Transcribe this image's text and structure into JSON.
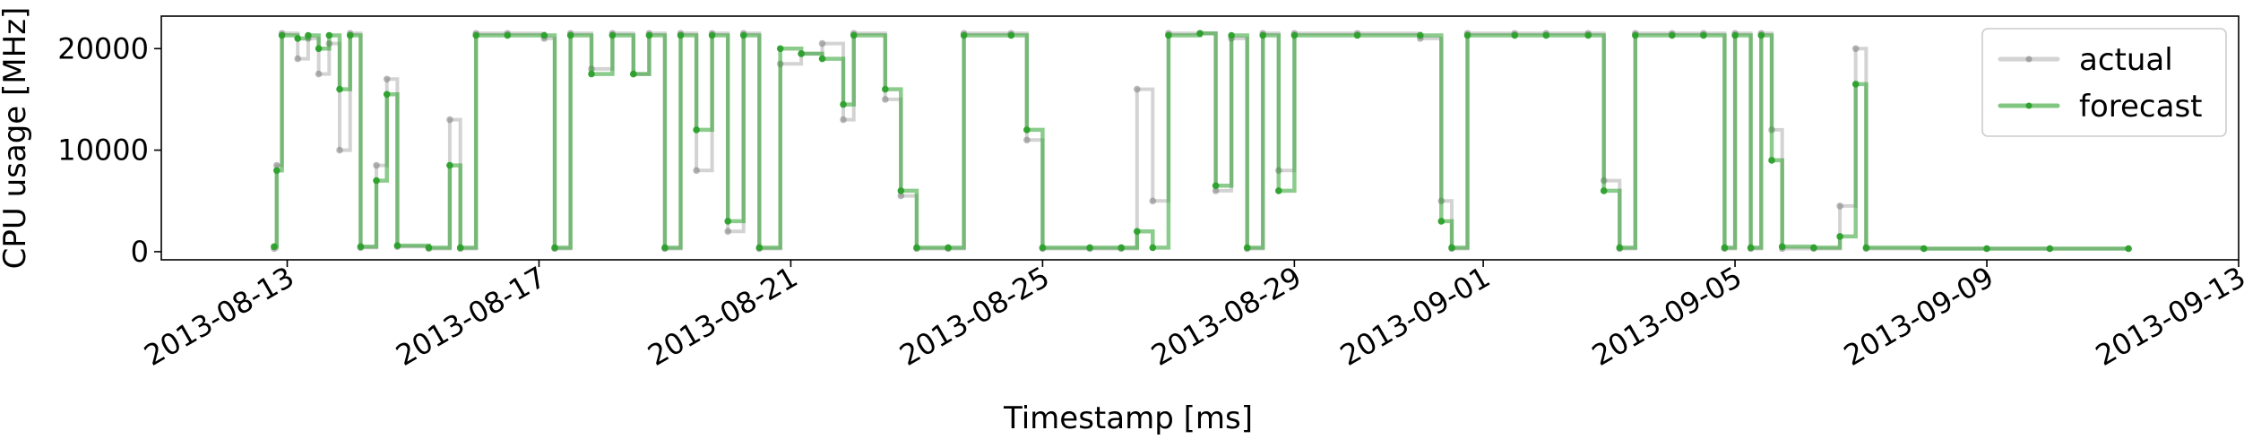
{
  "chart_data": {
    "type": "line",
    "xlabel": "Timestamp [ms]",
    "ylabel": "CPU usage [MHz]",
    "x_axis": {
      "type": "date",
      "range": [
        "2013-08-11",
        "2013-09-13"
      ]
    },
    "ylim": [
      -800,
      23200
    ],
    "y_ticks": [
      0,
      10000,
      20000
    ],
    "y_tick_labels": [
      "0",
      "10000",
      "20000"
    ],
    "x_ticks": [
      "2013-08-13",
      "2013-08-17",
      "2013-08-21",
      "2013-08-25",
      "2013-08-29",
      "2013-09-01",
      "2013-09-05",
      "2013-09-09",
      "2013-09-13"
    ],
    "x_tick_labels": [
      "2013-08-13",
      "2013-08-17",
      "2013-08-21",
      "2013-08-25",
      "2013-08-29",
      "2013-09-01",
      "2013-09-05",
      "2013-09-09",
      "2013-09-13"
    ],
    "grid": false,
    "legend": {
      "placement": "top-right"
    },
    "series": [
      {
        "name": "actual",
        "color": "#808080",
        "marker": "dot",
        "points": [
          [
            "2013-08-12 19:00",
            300
          ],
          [
            "2013-08-12 20:00",
            8500
          ],
          [
            "2013-08-12 22:00",
            21500
          ],
          [
            "2013-08-13 04:00",
            19000
          ],
          [
            "2013-08-13 08:00",
            21000
          ],
          [
            "2013-08-13 12:00",
            17500
          ],
          [
            "2013-08-13 16:00",
            20500
          ],
          [
            "2013-08-13 20:00",
            10000
          ],
          [
            "2013-08-14 00:00",
            21500
          ],
          [
            "2013-08-14 04:00",
            400
          ],
          [
            "2013-08-14 10:00",
            8500
          ],
          [
            "2013-08-14 14:00",
            17000
          ],
          [
            "2013-08-14 18:00",
            500
          ],
          [
            "2013-08-15 06:00",
            300
          ],
          [
            "2013-08-15 14:00",
            13000
          ],
          [
            "2013-08-15 18:00",
            300
          ],
          [
            "2013-08-16 00:00",
            21500
          ],
          [
            "2013-08-16 12:00",
            21500
          ],
          [
            "2013-08-17 02:00",
            21000
          ],
          [
            "2013-08-17 06:00",
            300
          ],
          [
            "2013-08-17 12:00",
            21500
          ],
          [
            "2013-08-17 20:00",
            18000
          ],
          [
            "2013-08-18 04:00",
            21500
          ],
          [
            "2013-08-18 12:00",
            17500
          ],
          [
            "2013-08-18 18:00",
            21500
          ],
          [
            "2013-08-19 00:00",
            300
          ],
          [
            "2013-08-19 06:00",
            21500
          ],
          [
            "2013-08-19 12:00",
            8000
          ],
          [
            "2013-08-19 18:00",
            21500
          ],
          [
            "2013-08-20 00:00",
            2000
          ],
          [
            "2013-08-20 06:00",
            21500
          ],
          [
            "2013-08-20 12:00",
            300
          ],
          [
            "2013-08-20 20:00",
            18500
          ],
          [
            "2013-08-21 04:00",
            19500
          ],
          [
            "2013-08-21 12:00",
            20500
          ],
          [
            "2013-08-21 20:00",
            13000
          ],
          [
            "2013-08-22 00:00",
            21500
          ],
          [
            "2013-08-22 12:00",
            15000
          ],
          [
            "2013-08-22 18:00",
            5500
          ],
          [
            "2013-08-23 00:00",
            300
          ],
          [
            "2013-08-23 12:00",
            300
          ],
          [
            "2013-08-23 18:00",
            21500
          ],
          [
            "2013-08-24 12:00",
            21500
          ],
          [
            "2013-08-24 18:00",
            11000
          ],
          [
            "2013-08-25 00:00",
            300
          ],
          [
            "2013-08-25 18:00",
            300
          ],
          [
            "2013-08-26 06:00",
            300
          ],
          [
            "2013-08-26 12:00",
            16000
          ],
          [
            "2013-08-26 18:00",
            5000
          ],
          [
            "2013-08-27 00:00",
            21500
          ],
          [
            "2013-08-27 12:00",
            21500
          ],
          [
            "2013-08-27 18:00",
            6000
          ],
          [
            "2013-08-28 00:00",
            21000
          ],
          [
            "2013-08-28 06:00",
            300
          ],
          [
            "2013-08-28 12:00",
            21500
          ],
          [
            "2013-08-28 18:00",
            8000
          ],
          [
            "2013-08-29 00:00",
            21500
          ],
          [
            "2013-08-30 00:00",
            21500
          ],
          [
            "2013-08-31 00:00",
            21000
          ],
          [
            "2013-08-31 08:00",
            5000
          ],
          [
            "2013-08-31 12:00",
            300
          ],
          [
            "2013-08-31 18:00",
            21500
          ],
          [
            "2013-09-01 12:00",
            21500
          ],
          [
            "2013-09-02 00:00",
            21500
          ],
          [
            "2013-09-02 16:00",
            21500
          ],
          [
            "2013-09-02 22:00",
            7000
          ],
          [
            "2013-09-03 04:00",
            300
          ],
          [
            "2013-09-03 10:00",
            21500
          ],
          [
            "2013-09-04 00:00",
            21500
          ],
          [
            "2013-09-04 12:00",
            21500
          ],
          [
            "2013-09-04 20:00",
            300
          ],
          [
            "2013-09-05 00:00",
            21500
          ],
          [
            "2013-09-05 06:00",
            300
          ],
          [
            "2013-09-05 10:00",
            21500
          ],
          [
            "2013-09-05 14:00",
            12000
          ],
          [
            "2013-09-05 18:00",
            300
          ],
          [
            "2013-09-06 06:00",
            300
          ],
          [
            "2013-09-06 16:00",
            4500
          ],
          [
            "2013-09-06 22:00",
            20000
          ],
          [
            "2013-09-07 02:00",
            300
          ],
          [
            "2013-09-08 00:00",
            300
          ],
          [
            "2013-09-09 00:00",
            300
          ],
          [
            "2013-09-10 00:00",
            300
          ],
          [
            "2013-09-11 06:00",
            300
          ]
        ]
      },
      {
        "name": "forecast",
        "color": "#2ca02c",
        "marker": "dot",
        "points": [
          [
            "2013-08-12 19:00",
            500
          ],
          [
            "2013-08-12 20:00",
            8000
          ],
          [
            "2013-08-12 22:00",
            21300
          ],
          [
            "2013-08-13 04:00",
            21000
          ],
          [
            "2013-08-13 08:00",
            21300
          ],
          [
            "2013-08-13 12:00",
            20000
          ],
          [
            "2013-08-13 16:00",
            21300
          ],
          [
            "2013-08-13 20:00",
            16000
          ],
          [
            "2013-08-14 00:00",
            21300
          ],
          [
            "2013-08-14 04:00",
            500
          ],
          [
            "2013-08-14 10:00",
            7000
          ],
          [
            "2013-08-14 14:00",
            15500
          ],
          [
            "2013-08-14 18:00",
            600
          ],
          [
            "2013-08-15 06:00",
            400
          ],
          [
            "2013-08-15 14:00",
            8500
          ],
          [
            "2013-08-15 18:00",
            400
          ],
          [
            "2013-08-16 00:00",
            21300
          ],
          [
            "2013-08-16 12:00",
            21300
          ],
          [
            "2013-08-17 02:00",
            21300
          ],
          [
            "2013-08-17 06:00",
            400
          ],
          [
            "2013-08-17 12:00",
            21300
          ],
          [
            "2013-08-17 20:00",
            17500
          ],
          [
            "2013-08-18 04:00",
            21300
          ],
          [
            "2013-08-18 12:00",
            17500
          ],
          [
            "2013-08-18 18:00",
            21300
          ],
          [
            "2013-08-19 00:00",
            400
          ],
          [
            "2013-08-19 06:00",
            21300
          ],
          [
            "2013-08-19 12:00",
            12000
          ],
          [
            "2013-08-19 18:00",
            21300
          ],
          [
            "2013-08-20 00:00",
            3000
          ],
          [
            "2013-08-20 06:00",
            21300
          ],
          [
            "2013-08-20 12:00",
            400
          ],
          [
            "2013-08-20 20:00",
            20000
          ],
          [
            "2013-08-21 04:00",
            19500
          ],
          [
            "2013-08-21 12:00",
            19000
          ],
          [
            "2013-08-21 20:00",
            14500
          ],
          [
            "2013-08-22 00:00",
            21300
          ],
          [
            "2013-08-22 12:00",
            16000
          ],
          [
            "2013-08-22 18:00",
            6000
          ],
          [
            "2013-08-23 00:00",
            400
          ],
          [
            "2013-08-23 12:00",
            400
          ],
          [
            "2013-08-23 18:00",
            21300
          ],
          [
            "2013-08-24 12:00",
            21300
          ],
          [
            "2013-08-24 18:00",
            12000
          ],
          [
            "2013-08-25 00:00",
            400
          ],
          [
            "2013-08-25 18:00",
            400
          ],
          [
            "2013-08-26 06:00",
            400
          ],
          [
            "2013-08-26 12:00",
            2000
          ],
          [
            "2013-08-26 18:00",
            400
          ],
          [
            "2013-08-27 00:00",
            21300
          ],
          [
            "2013-08-27 12:00",
            21500
          ],
          [
            "2013-08-27 18:00",
            6500
          ],
          [
            "2013-08-28 00:00",
            21300
          ],
          [
            "2013-08-28 06:00",
            400
          ],
          [
            "2013-08-28 12:00",
            21300
          ],
          [
            "2013-08-28 18:00",
            6000
          ],
          [
            "2013-08-29 00:00",
            21300
          ],
          [
            "2013-08-30 00:00",
            21300
          ],
          [
            "2013-08-31 00:00",
            21300
          ],
          [
            "2013-08-31 08:00",
            3000
          ],
          [
            "2013-08-31 12:00",
            400
          ],
          [
            "2013-08-31 18:00",
            21300
          ],
          [
            "2013-09-01 12:00",
            21300
          ],
          [
            "2013-09-02 00:00",
            21300
          ],
          [
            "2013-09-02 16:00",
            21300
          ],
          [
            "2013-09-02 22:00",
            6000
          ],
          [
            "2013-09-03 04:00",
            400
          ],
          [
            "2013-09-03 10:00",
            21300
          ],
          [
            "2013-09-04 00:00",
            21300
          ],
          [
            "2013-09-04 12:00",
            21300
          ],
          [
            "2013-09-04 20:00",
            400
          ],
          [
            "2013-09-05 00:00",
            21300
          ],
          [
            "2013-09-05 06:00",
            400
          ],
          [
            "2013-09-05 10:00",
            21300
          ],
          [
            "2013-09-05 14:00",
            9000
          ],
          [
            "2013-09-05 18:00",
            500
          ],
          [
            "2013-09-06 06:00",
            400
          ],
          [
            "2013-09-06 16:00",
            1500
          ],
          [
            "2013-09-06 22:00",
            16500
          ],
          [
            "2013-09-07 02:00",
            400
          ],
          [
            "2013-09-08 00:00",
            300
          ],
          [
            "2013-09-09 00:00",
            300
          ],
          [
            "2013-09-10 00:00",
            300
          ],
          [
            "2013-09-11 06:00",
            300
          ]
        ]
      }
    ]
  }
}
